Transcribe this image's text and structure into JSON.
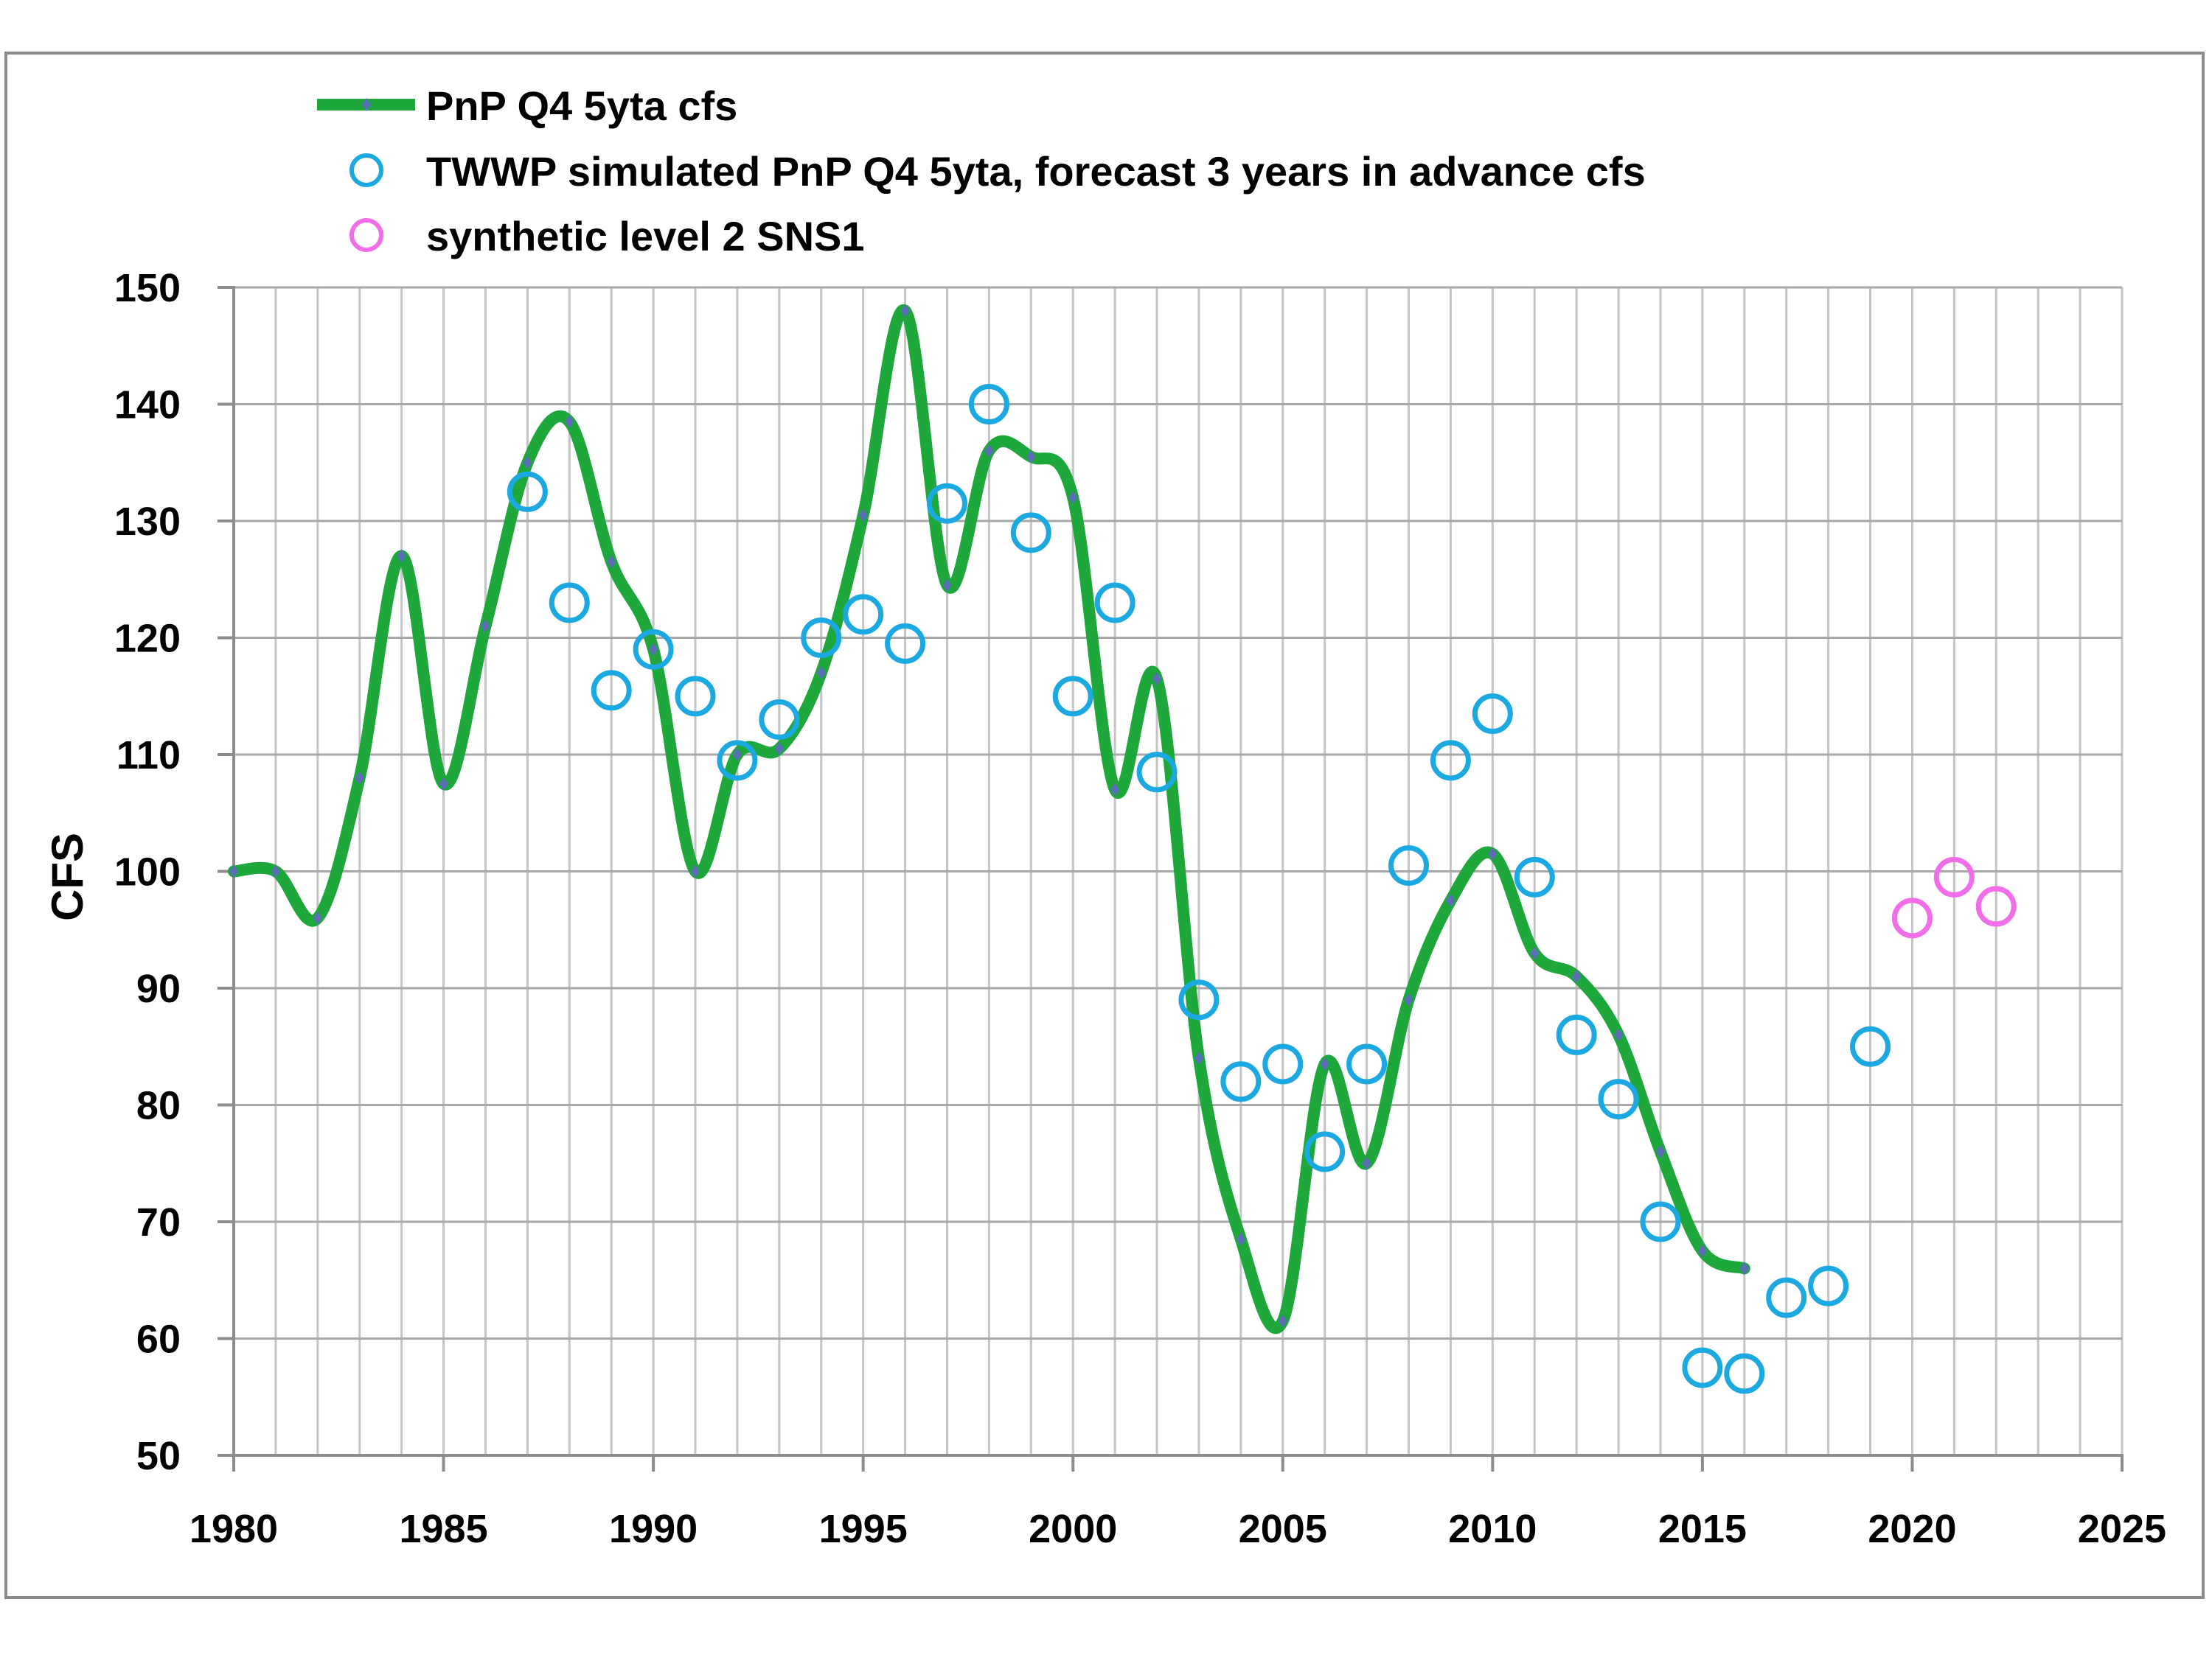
{
  "chart_data": {
    "type": "line",
    "title": "",
    "xlabel": "",
    "ylabel": "CFS",
    "xlim": [
      1980,
      2025
    ],
    "ylim": [
      50,
      150
    ],
    "x_ticks": [
      1980,
      1985,
      1990,
      1995,
      2000,
      2005,
      2010,
      2015,
      2020,
      2025
    ],
    "y_ticks": [
      50,
      60,
      70,
      80,
      90,
      100,
      110,
      120,
      130,
      140,
      150
    ],
    "grid": "major and minor vertical, major horizontal",
    "legend_position": "top-left",
    "series": [
      {
        "name": "PnP Q4 5yta cfs",
        "kind": "smoothed-line",
        "color": "#1ea83c",
        "marker_color": "#5a6fb5",
        "x": [
          1980,
          1981,
          1982,
          1983,
          1984,
          1985,
          1986,
          1987,
          1988,
          1989,
          1990,
          1991,
          1992,
          1993,
          1994,
          1995,
          1996,
          1997,
          1998,
          1999,
          2000,
          2001,
          2002,
          2003,
          2004,
          2005,
          2006,
          2007,
          2008,
          2009,
          2010,
          2011,
          2012,
          2013,
          2014,
          2015,
          2016
        ],
        "y": [
          100,
          100,
          96,
          108,
          127,
          107.5,
          121,
          135,
          138.5,
          126.5,
          119,
          100,
          110,
          110.5,
          117,
          130.5,
          148,
          124.5,
          136,
          135.5,
          132,
          107,
          116.5,
          84,
          68.5,
          61.5,
          83.5,
          75,
          89,
          97.5,
          101.5,
          93,
          91,
          86,
          76,
          67.5,
          66
        ]
      },
      {
        "name": "TWWP simulated PnP Q4 5yta, forecast 3 years in advance cfs",
        "kind": "scatter",
        "color": "#1ca8e0",
        "x": [
          1987,
          1988,
          1989,
          1990,
          1991,
          1992,
          1993,
          1994,
          1995,
          1996,
          1997,
          1998,
          1999,
          2000,
          2001,
          2002,
          2003,
          2004,
          2005,
          2006,
          2007,
          2008,
          2009,
          2010,
          2011,
          2012,
          2013,
          2014,
          2015,
          2016,
          2017,
          2018,
          2019
        ],
        "y": [
          132.5,
          123,
          115.5,
          119,
          115,
          109.5,
          113,
          120,
          122,
          119.5,
          131.5,
          140,
          129,
          115,
          123,
          108.5,
          89,
          82,
          83.5,
          76,
          83.5,
          100.5,
          109.5,
          113.5,
          99.5,
          86,
          80.5,
          70,
          57.5,
          57,
          63.5,
          64.5,
          85
        ]
      },
      {
        "name": "synthetic level 2 SNS1",
        "kind": "scatter",
        "color": "#f06ee8",
        "x": [
          2020,
          2021,
          2022
        ],
        "y": [
          96,
          99.5,
          97
        ]
      }
    ]
  }
}
